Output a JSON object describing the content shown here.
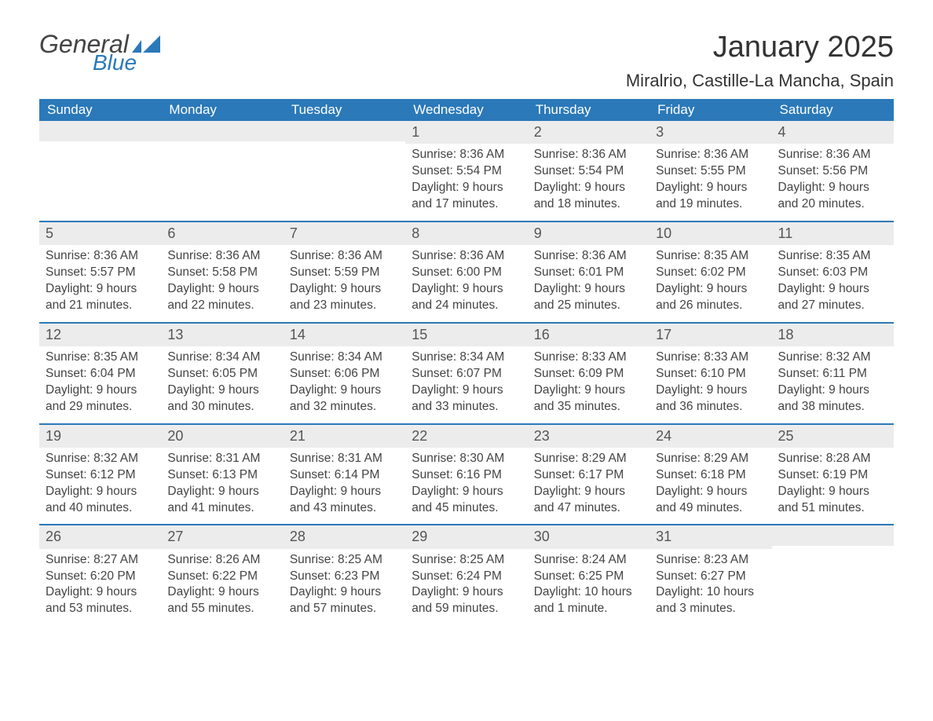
{
  "brand": {
    "general": "General",
    "blue": "Blue",
    "flag_color": "#2b79b9"
  },
  "title": "January 2025",
  "location": "Miralrio, Castille-La Mancha, Spain",
  "colors": {
    "header_bg": "#2b79b9",
    "header_fg": "#ffffff",
    "row_border": "#2b79b9",
    "daynum_bg": "#ececec",
    "text": "#444444",
    "background": "#ffffff"
  },
  "typography": {
    "title_fontsize": 38,
    "location_fontsize": 22,
    "weekday_fontsize": 17,
    "daynum_fontsize": 18,
    "body_fontsize": 15.5
  },
  "weekdays": [
    "Sunday",
    "Monday",
    "Tuesday",
    "Wednesday",
    "Thursday",
    "Friday",
    "Saturday"
  ],
  "weeks": [
    [
      {
        "day": "",
        "sunrise": "",
        "sunset": "",
        "daylight1": "",
        "daylight2": ""
      },
      {
        "day": "",
        "sunrise": "",
        "sunset": "",
        "daylight1": "",
        "daylight2": ""
      },
      {
        "day": "",
        "sunrise": "",
        "sunset": "",
        "daylight1": "",
        "daylight2": ""
      },
      {
        "day": "1",
        "sunrise": "Sunrise: 8:36 AM",
        "sunset": "Sunset: 5:54 PM",
        "daylight1": "Daylight: 9 hours",
        "daylight2": "and 17 minutes."
      },
      {
        "day": "2",
        "sunrise": "Sunrise: 8:36 AM",
        "sunset": "Sunset: 5:54 PM",
        "daylight1": "Daylight: 9 hours",
        "daylight2": "and 18 minutes."
      },
      {
        "day": "3",
        "sunrise": "Sunrise: 8:36 AM",
        "sunset": "Sunset: 5:55 PM",
        "daylight1": "Daylight: 9 hours",
        "daylight2": "and 19 minutes."
      },
      {
        "day": "4",
        "sunrise": "Sunrise: 8:36 AM",
        "sunset": "Sunset: 5:56 PM",
        "daylight1": "Daylight: 9 hours",
        "daylight2": "and 20 minutes."
      }
    ],
    [
      {
        "day": "5",
        "sunrise": "Sunrise: 8:36 AM",
        "sunset": "Sunset: 5:57 PM",
        "daylight1": "Daylight: 9 hours",
        "daylight2": "and 21 minutes."
      },
      {
        "day": "6",
        "sunrise": "Sunrise: 8:36 AM",
        "sunset": "Sunset: 5:58 PM",
        "daylight1": "Daylight: 9 hours",
        "daylight2": "and 22 minutes."
      },
      {
        "day": "7",
        "sunrise": "Sunrise: 8:36 AM",
        "sunset": "Sunset: 5:59 PM",
        "daylight1": "Daylight: 9 hours",
        "daylight2": "and 23 minutes."
      },
      {
        "day": "8",
        "sunrise": "Sunrise: 8:36 AM",
        "sunset": "Sunset: 6:00 PM",
        "daylight1": "Daylight: 9 hours",
        "daylight2": "and 24 minutes."
      },
      {
        "day": "9",
        "sunrise": "Sunrise: 8:36 AM",
        "sunset": "Sunset: 6:01 PM",
        "daylight1": "Daylight: 9 hours",
        "daylight2": "and 25 minutes."
      },
      {
        "day": "10",
        "sunrise": "Sunrise: 8:35 AM",
        "sunset": "Sunset: 6:02 PM",
        "daylight1": "Daylight: 9 hours",
        "daylight2": "and 26 minutes."
      },
      {
        "day": "11",
        "sunrise": "Sunrise: 8:35 AM",
        "sunset": "Sunset: 6:03 PM",
        "daylight1": "Daylight: 9 hours",
        "daylight2": "and 27 minutes."
      }
    ],
    [
      {
        "day": "12",
        "sunrise": "Sunrise: 8:35 AM",
        "sunset": "Sunset: 6:04 PM",
        "daylight1": "Daylight: 9 hours",
        "daylight2": "and 29 minutes."
      },
      {
        "day": "13",
        "sunrise": "Sunrise: 8:34 AM",
        "sunset": "Sunset: 6:05 PM",
        "daylight1": "Daylight: 9 hours",
        "daylight2": "and 30 minutes."
      },
      {
        "day": "14",
        "sunrise": "Sunrise: 8:34 AM",
        "sunset": "Sunset: 6:06 PM",
        "daylight1": "Daylight: 9 hours",
        "daylight2": "and 32 minutes."
      },
      {
        "day": "15",
        "sunrise": "Sunrise: 8:34 AM",
        "sunset": "Sunset: 6:07 PM",
        "daylight1": "Daylight: 9 hours",
        "daylight2": "and 33 minutes."
      },
      {
        "day": "16",
        "sunrise": "Sunrise: 8:33 AM",
        "sunset": "Sunset: 6:09 PM",
        "daylight1": "Daylight: 9 hours",
        "daylight2": "and 35 minutes."
      },
      {
        "day": "17",
        "sunrise": "Sunrise: 8:33 AM",
        "sunset": "Sunset: 6:10 PM",
        "daylight1": "Daylight: 9 hours",
        "daylight2": "and 36 minutes."
      },
      {
        "day": "18",
        "sunrise": "Sunrise: 8:32 AM",
        "sunset": "Sunset: 6:11 PM",
        "daylight1": "Daylight: 9 hours",
        "daylight2": "and 38 minutes."
      }
    ],
    [
      {
        "day": "19",
        "sunrise": "Sunrise: 8:32 AM",
        "sunset": "Sunset: 6:12 PM",
        "daylight1": "Daylight: 9 hours",
        "daylight2": "and 40 minutes."
      },
      {
        "day": "20",
        "sunrise": "Sunrise: 8:31 AM",
        "sunset": "Sunset: 6:13 PM",
        "daylight1": "Daylight: 9 hours",
        "daylight2": "and 41 minutes."
      },
      {
        "day": "21",
        "sunrise": "Sunrise: 8:31 AM",
        "sunset": "Sunset: 6:14 PM",
        "daylight1": "Daylight: 9 hours",
        "daylight2": "and 43 minutes."
      },
      {
        "day": "22",
        "sunrise": "Sunrise: 8:30 AM",
        "sunset": "Sunset: 6:16 PM",
        "daylight1": "Daylight: 9 hours",
        "daylight2": "and 45 minutes."
      },
      {
        "day": "23",
        "sunrise": "Sunrise: 8:29 AM",
        "sunset": "Sunset: 6:17 PM",
        "daylight1": "Daylight: 9 hours",
        "daylight2": "and 47 minutes."
      },
      {
        "day": "24",
        "sunrise": "Sunrise: 8:29 AM",
        "sunset": "Sunset: 6:18 PM",
        "daylight1": "Daylight: 9 hours",
        "daylight2": "and 49 minutes."
      },
      {
        "day": "25",
        "sunrise": "Sunrise: 8:28 AM",
        "sunset": "Sunset: 6:19 PM",
        "daylight1": "Daylight: 9 hours",
        "daylight2": "and 51 minutes."
      }
    ],
    [
      {
        "day": "26",
        "sunrise": "Sunrise: 8:27 AM",
        "sunset": "Sunset: 6:20 PM",
        "daylight1": "Daylight: 9 hours",
        "daylight2": "and 53 minutes."
      },
      {
        "day": "27",
        "sunrise": "Sunrise: 8:26 AM",
        "sunset": "Sunset: 6:22 PM",
        "daylight1": "Daylight: 9 hours",
        "daylight2": "and 55 minutes."
      },
      {
        "day": "28",
        "sunrise": "Sunrise: 8:25 AM",
        "sunset": "Sunset: 6:23 PM",
        "daylight1": "Daylight: 9 hours",
        "daylight2": "and 57 minutes."
      },
      {
        "day": "29",
        "sunrise": "Sunrise: 8:25 AM",
        "sunset": "Sunset: 6:24 PM",
        "daylight1": "Daylight: 9 hours",
        "daylight2": "and 59 minutes."
      },
      {
        "day": "30",
        "sunrise": "Sunrise: 8:24 AM",
        "sunset": "Sunset: 6:25 PM",
        "daylight1": "Daylight: 10 hours",
        "daylight2": "and 1 minute."
      },
      {
        "day": "31",
        "sunrise": "Sunrise: 8:23 AM",
        "sunset": "Sunset: 6:27 PM",
        "daylight1": "Daylight: 10 hours",
        "daylight2": "and 3 minutes."
      },
      {
        "day": "",
        "sunrise": "",
        "sunset": "",
        "daylight1": "",
        "daylight2": ""
      }
    ]
  ]
}
